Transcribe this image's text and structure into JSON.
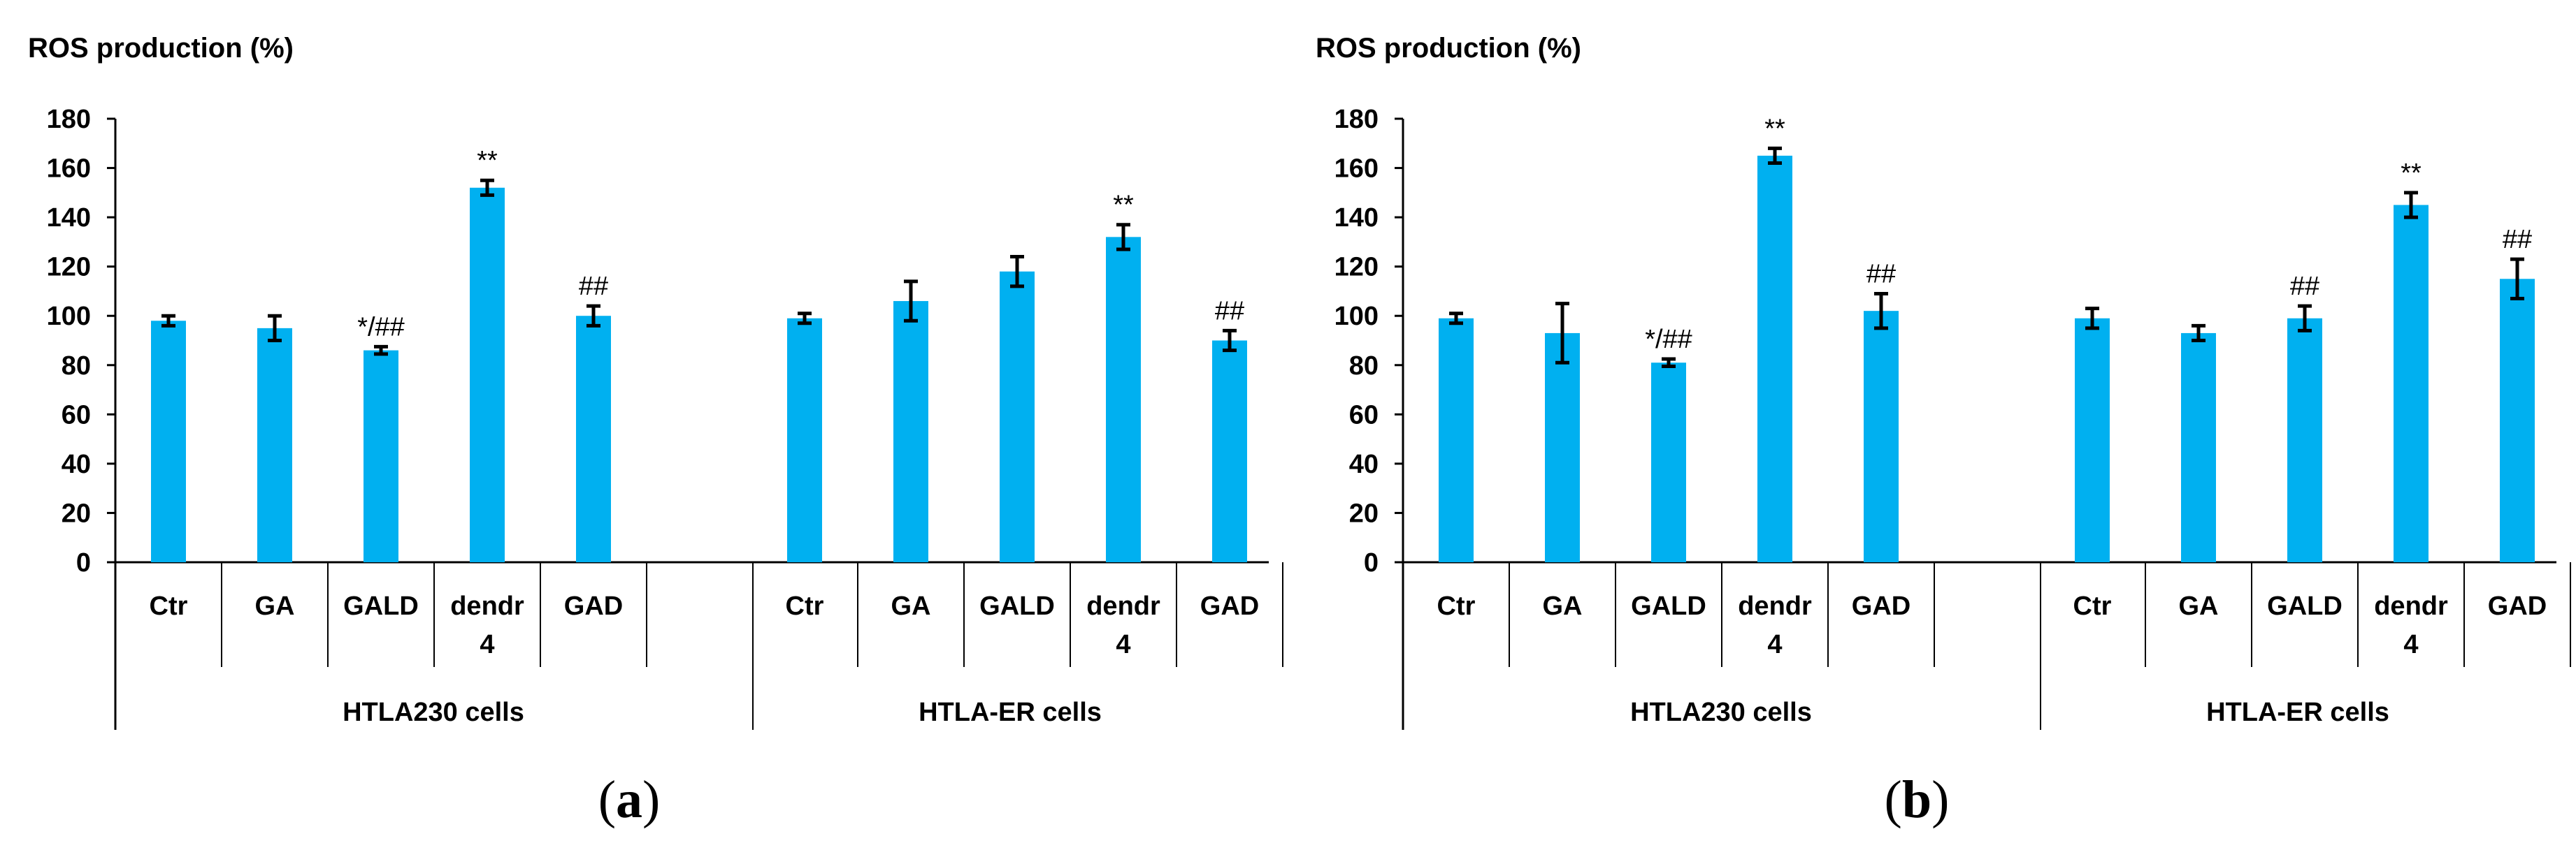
{
  "bar_color": "#00b0f0",
  "axis_color": "#000000",
  "chart_data": [
    {
      "type": "bar",
      "panel_label": "a",
      "ylabel": "ROS production (%)",
      "ylim": [
        0,
        180
      ],
      "yticks": [
        0,
        20,
        40,
        60,
        80,
        100,
        120,
        140,
        160,
        180
      ],
      "groups": [
        {
          "name": "HTLA230 cells",
          "bars": [
            {
              "category": [
                "Ctr"
              ],
              "value": 98,
              "error": 2,
              "annotation": ""
            },
            {
              "category": [
                "GA"
              ],
              "value": 95,
              "error": 5,
              "annotation": ""
            },
            {
              "category": [
                "GALD"
              ],
              "value": 86,
              "error": 1.5,
              "annotation": "*/##"
            },
            {
              "category": [
                "dendr",
                "4"
              ],
              "value": 152,
              "error": 3,
              "annotation": "**"
            },
            {
              "category": [
                "GAD"
              ],
              "value": 100,
              "error": 4,
              "annotation": "##"
            }
          ]
        },
        {
          "name": "HTLA-ER cells",
          "bars": [
            {
              "category": [
                "Ctr"
              ],
              "value": 99,
              "error": 2,
              "annotation": ""
            },
            {
              "category": [
                "GA"
              ],
              "value": 106,
              "error": 8,
              "annotation": ""
            },
            {
              "category": [
                "GALD"
              ],
              "value": 118,
              "error": 6,
              "annotation": ""
            },
            {
              "category": [
                "dendr",
                "4"
              ],
              "value": 132,
              "error": 5,
              "annotation": "**"
            },
            {
              "category": [
                "GAD"
              ],
              "value": 90,
              "error": 4,
              "annotation": "##"
            }
          ]
        }
      ]
    },
    {
      "type": "bar",
      "panel_label": "b",
      "ylabel": "ROS production (%)",
      "ylim": [
        0,
        180
      ],
      "yticks": [
        0,
        20,
        40,
        60,
        80,
        100,
        120,
        140,
        160,
        180
      ],
      "groups": [
        {
          "name": "HTLA230 cells",
          "bars": [
            {
              "category": [
                "Ctr"
              ],
              "value": 99,
              "error": 2,
              "annotation": ""
            },
            {
              "category": [
                "GA"
              ],
              "value": 93,
              "error": 12,
              "annotation": ""
            },
            {
              "category": [
                "GALD"
              ],
              "value": 81,
              "error": 1.5,
              "annotation": "*/##"
            },
            {
              "category": [
                "dendr",
                "4"
              ],
              "value": 165,
              "error": 3,
              "annotation": "**"
            },
            {
              "category": [
                "GAD"
              ],
              "value": 102,
              "error": 7,
              "annotation": "##"
            }
          ]
        },
        {
          "name": "HTLA-ER cells",
          "bars": [
            {
              "category": [
                "Ctr"
              ],
              "value": 99,
              "error": 4,
              "annotation": ""
            },
            {
              "category": [
                "GA"
              ],
              "value": 93,
              "error": 3,
              "annotation": ""
            },
            {
              "category": [
                "GALD"
              ],
              "value": 99,
              "error": 5,
              "annotation": "##"
            },
            {
              "category": [
                "dendr",
                "4"
              ],
              "value": 145,
              "error": 5,
              "annotation": "**"
            },
            {
              "category": [
                "GAD"
              ],
              "value": 115,
              "error": 8,
              "annotation": "##"
            }
          ]
        }
      ]
    }
  ]
}
